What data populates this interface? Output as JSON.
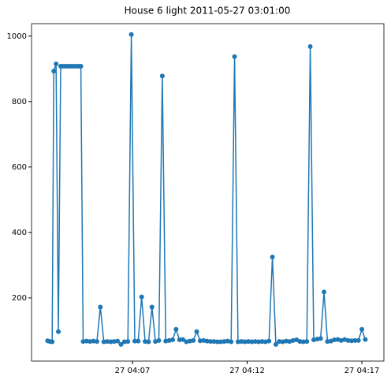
{
  "chart_data": {
    "type": "line",
    "title": "House 6 light 2011-05-27 03:01:00",
    "x": [
      3.3,
      3.4,
      3.5,
      3.57,
      3.67,
      3.77,
      3.87,
      3.95,
      4.05,
      4.15,
      4.25,
      4.35,
      4.45,
      4.55,
      4.65,
      4.75,
      4.85,
      5.0,
      5.15,
      5.3,
      5.45,
      5.6,
      5.75,
      5.9,
      6.05,
      6.2,
      6.35,
      6.5,
      6.65,
      6.8,
      6.95,
      7.1,
      7.25,
      7.4,
      7.55,
      7.7,
      7.85,
      8.0,
      8.15,
      8.3,
      8.45,
      8.6,
      8.75,
      8.9,
      9.05,
      9.2,
      9.35,
      9.5,
      9.65,
      9.8,
      9.95,
      10.1,
      10.25,
      10.4,
      10.55,
      10.7,
      10.85,
      11.0,
      11.15,
      11.3,
      11.45,
      11.6,
      11.75,
      11.9,
      12.05,
      12.2,
      12.35,
      12.5,
      12.65,
      12.8,
      12.95,
      13.1,
      13.25,
      13.4,
      13.55,
      13.7,
      13.85,
      14.0,
      14.15,
      14.3,
      14.45,
      14.6,
      14.75,
      14.9,
      15.05,
      15.2,
      15.35,
      15.5,
      15.65,
      15.8,
      15.95,
      16.1,
      16.25,
      16.4,
      16.55,
      16.7,
      16.85,
      17.0,
      17.15
    ],
    "series": [
      {
        "color": "#1f77b4",
        "values": [
          69,
          67,
          66,
          893,
          915,
          97,
          908,
          908,
          908,
          908,
          908,
          908,
          908,
          908,
          908,
          908,
          67,
          68,
          67,
          68,
          67,
          172,
          66,
          67,
          66,
          67,
          68,
          58,
          66,
          67,
          1005,
          68,
          68,
          203,
          67,
          66,
          172,
          67,
          70,
          878,
          68,
          70,
          72,
          104,
          72,
          73,
          66,
          68,
          70,
          97,
          69,
          70,
          68,
          67,
          67,
          66,
          66,
          67,
          68,
          66,
          937,
          66,
          67,
          66,
          67,
          66,
          67,
          66,
          67,
          66,
          68,
          325,
          58,
          67,
          66,
          68,
          67,
          70,
          72,
          67,
          66,
          67,
          968,
          72,
          74,
          76,
          218,
          67,
          68,
          72,
          73,
          70,
          73,
          70,
          69,
          70,
          70,
          104,
          73
        ]
      }
    ],
    "xlim": [
      2.6,
      17.96
    ],
    "xticks": [
      {
        "value": 7,
        "label": "27 04:07"
      },
      {
        "value": 12,
        "label": "27 04:12"
      },
      {
        "value": 17,
        "label": "27 04:17"
      }
    ],
    "ylim": [
      7,
      1038
    ],
    "yticks": [
      200,
      400,
      600,
      800,
      1000
    ]
  }
}
